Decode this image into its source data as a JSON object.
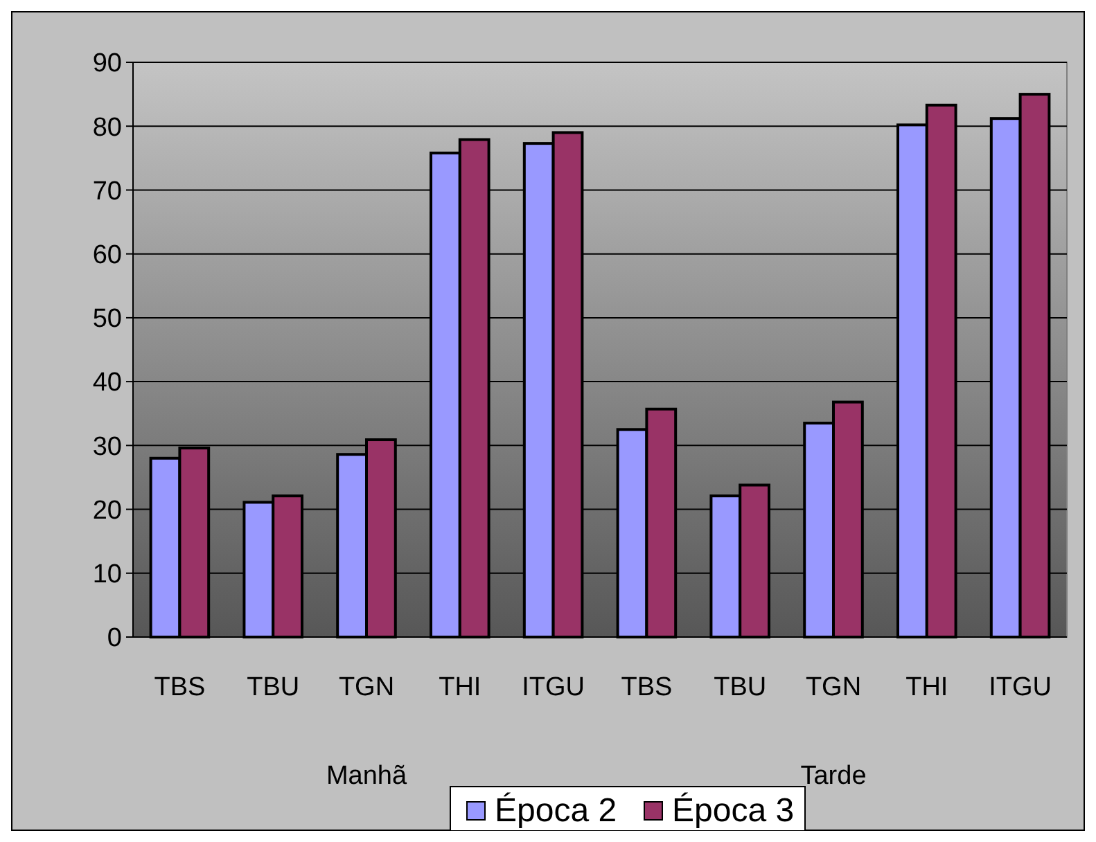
{
  "chart_data": {
    "type": "bar",
    "categories": [
      "TBS",
      "TBU",
      "TGN",
      "THI",
      "ITGU",
      "TBS",
      "TBU",
      "TGN",
      "THI",
      "ITGU"
    ],
    "series": [
      {
        "name": "Época 2",
        "color": "#9999ff",
        "values": [
          28.0,
          21.1,
          28.6,
          75.8,
          77.3,
          32.5,
          22.1,
          33.5,
          80.2,
          81.2
        ]
      },
      {
        "name": "Época 3",
        "color": "#993366",
        "values": [
          29.6,
          22.1,
          30.9,
          77.9,
          79.0,
          35.7,
          23.8,
          36.8,
          83.3,
          85.0
        ]
      }
    ],
    "annotations": [
      "Manhã",
      "Tarde"
    ],
    "ylim": [
      0,
      90
    ],
    "yticks": [
      0,
      10,
      20,
      30,
      40,
      50,
      60,
      70,
      80,
      90
    ],
    "grid": "y",
    "legend": "bottom"
  }
}
